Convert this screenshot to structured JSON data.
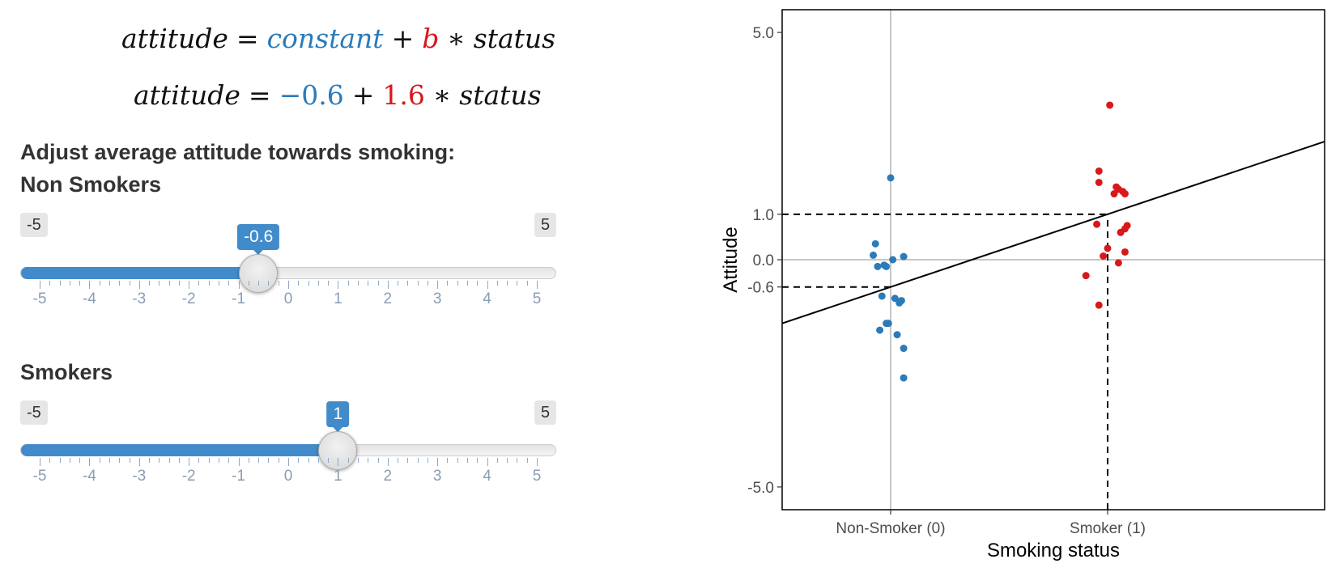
{
  "formula": {
    "line1": {
      "lhs": "attitude",
      "eq": "=",
      "constant": "constant",
      "plus": "+",
      "b": "b",
      "times": "∗",
      "var": "status"
    },
    "line2": {
      "lhs": "attitude",
      "eq": "=",
      "constant": "−0.6",
      "plus": "+",
      "b": "1.6",
      "times": "∗",
      "var": "status"
    }
  },
  "panel": {
    "heading": "Adjust average attitude towards smoking:",
    "sliders": [
      {
        "label": "Non Smokers",
        "min": "-5",
        "max": "5",
        "value": "-0.6",
        "fraction": 0.44
      },
      {
        "label": "Smokers",
        "min": "-5",
        "max": "5",
        "value": "1",
        "fraction": 0.6
      }
    ],
    "tick_labels": [
      "-5",
      "-4",
      "-3",
      "-2",
      "-1",
      "0",
      "1",
      "2",
      "3",
      "4",
      "5"
    ]
  },
  "colors": {
    "accent": "#428bca",
    "non_smoker": "#2b7bba",
    "smoker": "#d7191c"
  },
  "chart_data": {
    "type": "scatter",
    "xlabel": "Smoking status",
    "ylabel": "Attitude",
    "x_ticks": [
      "Non-Smoker (0)",
      "Smoker (1)"
    ],
    "y_ticks": [
      "-5.0",
      "-0.6",
      "0.0",
      "1.0",
      "5.0"
    ],
    "xlim": [
      -0.5,
      2.0
    ],
    "ylim": [
      -5.5,
      5.5
    ],
    "grid": false,
    "regression_line": {
      "intercept": -0.6,
      "slope": 1.6
    },
    "reference_lines": [
      {
        "kind": "hline",
        "y": 0.0,
        "style": "solid"
      },
      {
        "kind": "vline",
        "x": 0,
        "style": "solid"
      },
      {
        "kind": "hline",
        "y": 1.0,
        "x_to": 1,
        "style": "dashed"
      },
      {
        "kind": "hline",
        "y": -0.6,
        "x_to": 0,
        "style": "dashed"
      },
      {
        "kind": "vline",
        "x": 1,
        "y_to": 1.0,
        "style": "dashed"
      }
    ],
    "series": [
      {
        "name": "Non-Smoker (0)",
        "points": [
          [
            0.0,
            1.8
          ],
          [
            -0.07,
            0.35
          ],
          [
            -0.08,
            0.1
          ],
          [
            -0.06,
            -0.15
          ],
          [
            -0.03,
            -0.12
          ],
          [
            -0.02,
            -0.15
          ],
          [
            0.01,
            0.0
          ],
          [
            0.06,
            0.07
          ],
          [
            -0.04,
            -0.8
          ],
          [
            0.02,
            -0.85
          ],
          [
            0.04,
            -0.95
          ],
          [
            0.05,
            -0.9
          ],
          [
            -0.01,
            -1.4
          ],
          [
            -0.02,
            -1.4
          ],
          [
            -0.05,
            -1.55
          ],
          [
            0.03,
            -1.65
          ],
          [
            0.06,
            -1.95
          ],
          [
            0.06,
            -2.6
          ]
        ]
      },
      {
        "name": "Smoker (1)",
        "points": [
          [
            1.01,
            3.4
          ],
          [
            0.96,
            1.95
          ],
          [
            0.96,
            1.7
          ],
          [
            1.04,
            1.6
          ],
          [
            1.05,
            1.55
          ],
          [
            1.07,
            1.5
          ],
          [
            1.03,
            1.45
          ],
          [
            1.08,
            1.45
          ],
          [
            0.95,
            0.78
          ],
          [
            1.09,
            0.75
          ],
          [
            1.08,
            0.68
          ],
          [
            1.06,
            0.6
          ],
          [
            1.0,
            0.25
          ],
          [
            1.08,
            0.17
          ],
          [
            0.98,
            0.08
          ],
          [
            1.05,
            -0.07
          ],
          [
            0.9,
            -0.35
          ],
          [
            0.96,
            -1.0
          ]
        ]
      }
    ]
  }
}
